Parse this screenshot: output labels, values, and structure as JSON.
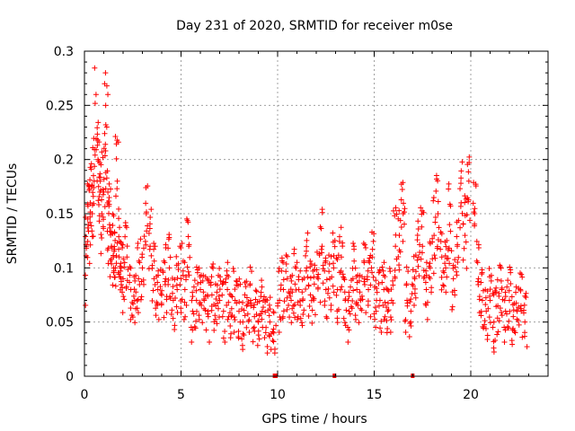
{
  "chart_data": {
    "type": "scatter",
    "title": "Day 231 of 2020, SRMTID for receiver m0se",
    "xlabel": "GPS time / hours",
    "ylabel": "SRMTID / TECUs",
    "xlim": [
      0,
      24
    ],
    "ylim": [
      0,
      0.3
    ],
    "x_ticks": [
      0,
      5,
      10,
      15,
      20
    ],
    "y_ticks": [
      0,
      0.05,
      0.1,
      0.15,
      0.2,
      0.25,
      0.3
    ],
    "x_tick_labels": [
      "0",
      "5",
      "10",
      "15",
      "20"
    ],
    "y_tick_labels": [
      "0",
      "0.05",
      "0.1",
      "0.15",
      "0.2",
      "0.25",
      "0.3"
    ],
    "grid": true,
    "marker": "plus",
    "color": "#ff0000",
    "series": [
      {
        "name": "SRMTID",
        "x": [
          0.0,
          0.1,
          0.2,
          0.3,
          0.4,
          0.5,
          0.6,
          0.7,
          0.8,
          0.9,
          1.0,
          1.1,
          1.2,
          1.3,
          1.4,
          1.5,
          1.6,
          1.7,
          1.8,
          1.9,
          2.0,
          2.2,
          2.4,
          2.6,
          2.8,
          3.0,
          3.2,
          3.4,
          3.6,
          3.8,
          4.0,
          4.2,
          4.4,
          4.6,
          4.8,
          5.0,
          5.2,
          5.4,
          5.6,
          5.8,
          6.0,
          6.2,
          6.4,
          6.6,
          6.8,
          7.0,
          7.2,
          7.4,
          7.6,
          7.8,
          8.0,
          8.2,
          8.4,
          8.6,
          8.8,
          9.0,
          9.2,
          9.4,
          9.6,
          9.8,
          10.1,
          10.3,
          10.5,
          10.7,
          10.9,
          11.1,
          11.3,
          11.5,
          11.7,
          11.9,
          12.1,
          12.3,
          12.5,
          12.7,
          12.9,
          13.1,
          13.3,
          13.5,
          13.7,
          13.9,
          14.1,
          14.3,
          14.5,
          14.7,
          14.9,
          15.1,
          15.3,
          15.5,
          15.7,
          15.9,
          16.1,
          16.3,
          16.5,
          16.7,
          16.9,
          17.1,
          17.3,
          17.5,
          17.7,
          17.9,
          18.1,
          18.3,
          18.5,
          18.7,
          18.9,
          19.1,
          19.3,
          19.5,
          19.7,
          19.9,
          20.2,
          20.4,
          20.6,
          20.8,
          21.0,
          21.2,
          21.4,
          21.6,
          21.8,
          22.0,
          22.2,
          22.4,
          22.6,
          22.8
        ],
        "values": [
          0.08,
          0.12,
          0.14,
          0.16,
          0.15,
          0.18,
          0.26,
          0.2,
          0.17,
          0.15,
          0.17,
          0.25,
          0.16,
          0.14,
          0.12,
          0.11,
          0.1,
          0.18,
          0.11,
          0.1,
          0.09,
          0.11,
          0.08,
          0.07,
          0.09,
          0.1,
          0.15,
          0.12,
          0.09,
          0.08,
          0.075,
          0.09,
          0.1,
          0.07,
          0.08,
          0.09,
          0.08,
          0.12,
          0.06,
          0.07,
          0.08,
          0.07,
          0.06,
          0.075,
          0.065,
          0.07,
          0.06,
          0.08,
          0.055,
          0.07,
          0.06,
          0.05,
          0.065,
          0.07,
          0.055,
          0.05,
          0.06,
          0.045,
          0.05,
          0.04,
          0.07,
          0.08,
          0.09,
          0.07,
          0.085,
          0.08,
          0.07,
          0.1,
          0.075,
          0.085,
          0.09,
          0.12,
          0.08,
          0.09,
          0.1,
          0.08,
          0.11,
          0.07,
          0.06,
          0.09,
          0.08,
          0.07,
          0.09,
          0.08,
          0.11,
          0.06,
          0.07,
          0.08,
          0.06,
          0.07,
          0.12,
          0.13,
          0.15,
          0.07,
          0.06,
          0.09,
          0.11,
          0.12,
          0.08,
          0.1,
          0.13,
          0.15,
          0.11,
          0.1,
          0.14,
          0.09,
          0.12,
          0.16,
          0.13,
          0.18,
          0.15,
          0.09,
          0.07,
          0.06,
          0.07,
          0.05,
          0.065,
          0.08,
          0.06,
          0.07,
          0.055,
          0.06,
          0.065,
          0.05
        ],
        "noise": [
          0.015,
          -0.012,
          0.02,
          -0.018,
          0.008,
          0.022,
          -0.01,
          0.014,
          -0.02,
          0.005,
          0.018,
          -0.015,
          0.01,
          -0.006,
          0.024,
          -0.021,
          0.003,
          0.012,
          -0.009,
          0.017,
          -0.004,
          0.009,
          -0.016,
          0.021,
          -0.011,
          0.006,
          -0.023,
          0.013,
          0.001,
          -0.014,
          0.019,
          -0.007,
          0.011,
          -0.019,
          0.016,
          -0.002,
          0.007,
          -0.013,
          0.023,
          -0.008
        ]
      }
    ],
    "axis_markers": [
      {
        "from": 9.75,
        "to": 10.0
      },
      {
        "from": 12.85,
        "to": 12.95
      },
      {
        "from": 16.9,
        "to": 17.05
      }
    ]
  }
}
